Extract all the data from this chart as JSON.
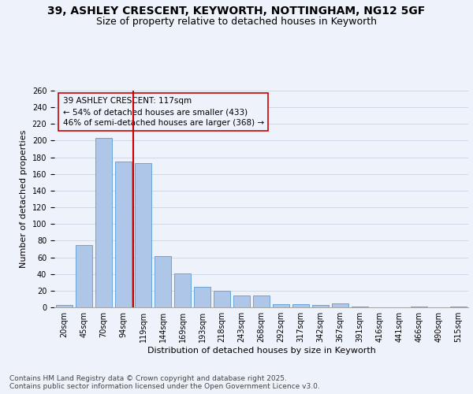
{
  "title_line1": "39, ASHLEY CRESCENT, KEYWORTH, NOTTINGHAM, NG12 5GF",
  "title_line2": "Size of property relative to detached houses in Keyworth",
  "xlabel": "Distribution of detached houses by size in Keyworth",
  "ylabel": "Number of detached properties",
  "categories": [
    "20sqm",
    "45sqm",
    "70sqm",
    "94sqm",
    "119sqm",
    "144sqm",
    "169sqm",
    "193sqm",
    "218sqm",
    "243sqm",
    "268sqm",
    "292sqm",
    "317sqm",
    "342sqm",
    "367sqm",
    "391sqm",
    "416sqm",
    "441sqm",
    "466sqm",
    "490sqm",
    "515sqm"
  ],
  "values": [
    3,
    75,
    203,
    175,
    173,
    61,
    41,
    25,
    20,
    14,
    14,
    4,
    4,
    3,
    5,
    1,
    0,
    0,
    1,
    0,
    1
  ],
  "bar_color": "#aec6e8",
  "bar_edge_color": "#5a9bd5",
  "grid_color": "#d0d8e8",
  "vline_color": "#cc0000",
  "vline_bar_index": 4,
  "annotation_text": "39 ASHLEY CRESCENT: 117sqm\n← 54% of detached houses are smaller (433)\n46% of semi-detached houses are larger (368) →",
  "ylim": [
    0,
    260
  ],
  "yticks": [
    0,
    20,
    40,
    60,
    80,
    100,
    120,
    140,
    160,
    180,
    200,
    220,
    240,
    260
  ],
  "footer": "Contains HM Land Registry data © Crown copyright and database right 2025.\nContains public sector information licensed under the Open Government Licence v3.0.",
  "bg_color": "#eef2fa",
  "title_fontsize": 10,
  "subtitle_fontsize": 9,
  "axis_label_fontsize": 8,
  "tick_fontsize": 7,
  "annotation_fontsize": 7.5,
  "footer_fontsize": 6.5
}
